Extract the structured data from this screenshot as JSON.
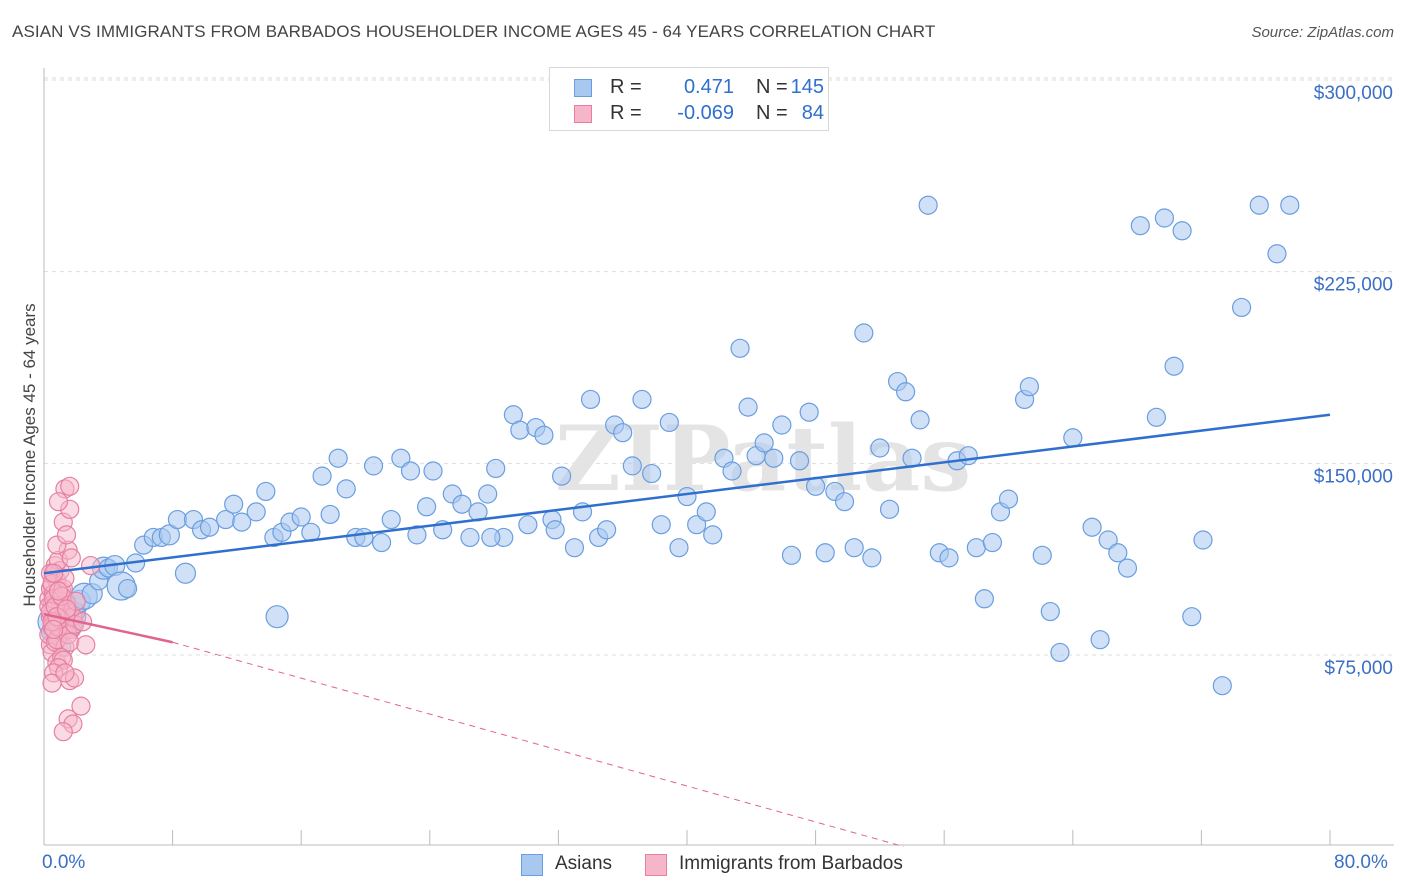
{
  "title": "ASIAN VS IMMIGRANTS FROM BARBADOS HOUSEHOLDER INCOME AGES 45 - 64 YEARS CORRELATION CHART",
  "source": "Source: ZipAtlas.com",
  "colors": {
    "blue_fill": "#a9c8f0",
    "blue_stroke": "#6a9ee0",
    "blue_line": "#2f6fce",
    "pink_fill": "#f5b6c9",
    "pink_stroke": "#e77fa0",
    "pink_line": "#e0648e",
    "axis_text": "#3a6fc4",
    "grid": "#dddddd"
  },
  "legend_top": {
    "rows": [
      {
        "r_label": "R =",
        "r_value": "0.471",
        "n_label": "N =",
        "n_value": "145",
        "series": "blue"
      },
      {
        "r_label": "R =",
        "r_value": "-0.069",
        "n_label": "N =",
        "n_value": "84",
        "series": "pink"
      }
    ]
  },
  "legend_bottom": [
    {
      "label": "Asians",
      "series": "blue"
    },
    {
      "label": "Immigrants from Barbados",
      "series": "pink"
    }
  ],
  "watermark": "ZIPatlas",
  "chart_data": {
    "type": "scatter",
    "ylabel": "Householder Income Ages 45 - 64 years",
    "xlabel": "",
    "xlim": [
      0,
      80
    ],
    "ylim": [
      0,
      310000
    ],
    "x_tick_labels": {
      "left": "0.0%",
      "right": "80.0%"
    },
    "y_ticks": [
      {
        "value": 75000,
        "label": "$75,000"
      },
      {
        "value": 150000,
        "label": "$150,000"
      },
      {
        "value": 225000,
        "label": "$225,000"
      },
      {
        "value": 300000,
        "label": "$300,000"
      }
    ],
    "grid": true,
    "series": [
      {
        "name": "Asians",
        "color": "#a9c8f0",
        "trend": {
          "x": [
            0,
            80
          ],
          "y": [
            107000,
            169000
          ],
          "style": "solid"
        },
        "points": [
          [
            0.5,
            88000,
            14
          ],
          [
            0.8,
            95000,
            10
          ],
          [
            1.0,
            84000,
            9
          ],
          [
            1.2,
            90000,
            12
          ],
          [
            1.4,
            96000,
            9
          ],
          [
            1.6,
            90000,
            16
          ],
          [
            2.0,
            92000,
            9
          ],
          [
            2.2,
            96000,
            11
          ],
          [
            2.5,
            98000,
            13
          ],
          [
            3.0,
            99000,
            10
          ],
          [
            1.8,
            86000,
            9
          ],
          [
            3.4,
            104000,
            9
          ],
          [
            3.7,
            109000,
            11
          ],
          [
            4.0,
            109000,
            9
          ],
          [
            4.4,
            110000,
            10
          ],
          [
            4.8,
            102000,
            14
          ],
          [
            5.2,
            101000,
            9
          ],
          [
            5.7,
            111000,
            9
          ],
          [
            6.2,
            118000,
            9
          ],
          [
            6.8,
            121000,
            9
          ],
          [
            7.3,
            121000,
            9
          ],
          [
            7.8,
            122000,
            10
          ],
          [
            8.3,
            128000,
            9
          ],
          [
            8.8,
            107000,
            10
          ],
          [
            9.3,
            128000,
            9
          ],
          [
            9.8,
            124000,
            9
          ],
          [
            10.3,
            125000,
            9
          ],
          [
            11.3,
            128000,
            9
          ],
          [
            11.8,
            134000,
            9
          ],
          [
            12.3,
            127000,
            9
          ],
          [
            13.2,
            131000,
            9
          ],
          [
            13.8,
            139000,
            9
          ],
          [
            14.3,
            121000,
            9
          ],
          [
            14.8,
            123000,
            9
          ],
          [
            15.3,
            127000,
            9
          ],
          [
            16.0,
            129000,
            9
          ],
          [
            16.6,
            123000,
            9
          ],
          [
            17.3,
            145000,
            9
          ],
          [
            17.8,
            130000,
            9
          ],
          [
            18.3,
            152000,
            9
          ],
          [
            18.8,
            140000,
            9
          ],
          [
            19.4,
            121000,
            9
          ],
          [
            19.9,
            121000,
            9
          ],
          [
            20.5,
            149000,
            9
          ],
          [
            21.0,
            119000,
            9
          ],
          [
            21.6,
            128000,
            9
          ],
          [
            22.2,
            152000,
            9
          ],
          [
            22.8,
            147000,
            9
          ],
          [
            23.2,
            122000,
            9
          ],
          [
            23.8,
            133000,
            9
          ],
          [
            24.2,
            147000,
            9
          ],
          [
            24.8,
            124000,
            9
          ],
          [
            25.4,
            138000,
            9
          ],
          [
            26.0,
            134000,
            9
          ],
          [
            26.5,
            121000,
            9
          ],
          [
            27.0,
            131000,
            9
          ],
          [
            27.6,
            138000,
            9
          ],
          [
            28.1,
            148000,
            9
          ],
          [
            28.6,
            121000,
            9
          ],
          [
            29.2,
            169000,
            9
          ],
          [
            29.6,
            163000,
            9
          ],
          [
            30.1,
            126000,
            9
          ],
          [
            30.6,
            164000,
            9
          ],
          [
            31.1,
            161000,
            9
          ],
          [
            31.6,
            128000,
            9
          ],
          [
            32.2,
            145000,
            9
          ],
          [
            33.0,
            117000,
            9
          ],
          [
            33.5,
            131000,
            9
          ],
          [
            34.0,
            175000,
            9
          ],
          [
            34.5,
            121000,
            9
          ],
          [
            35.0,
            124000,
            9
          ],
          [
            35.5,
            165000,
            9
          ],
          [
            36.0,
            162000,
            9
          ],
          [
            36.6,
            149000,
            9
          ],
          [
            37.2,
            175000,
            9
          ],
          [
            37.8,
            146000,
            9
          ],
          [
            38.4,
            126000,
            9
          ],
          [
            38.9,
            166000,
            9
          ],
          [
            39.5,
            117000,
            9
          ],
          [
            40.0,
            137000,
            9
          ],
          [
            40.6,
            126000,
            9
          ],
          [
            41.2,
            131000,
            9
          ],
          [
            41.6,
            122000,
            9
          ],
          [
            42.3,
            152000,
            9
          ],
          [
            42.8,
            147000,
            9
          ],
          [
            43.3,
            195000,
            9
          ],
          [
            43.8,
            172000,
            9
          ],
          [
            44.3,
            153000,
            9
          ],
          [
            44.8,
            158000,
            9
          ],
          [
            45.4,
            152000,
            9
          ],
          [
            45.9,
            165000,
            9
          ],
          [
            46.5,
            114000,
            9
          ],
          [
            47.0,
            151000,
            9
          ],
          [
            47.6,
            170000,
            9
          ],
          [
            48.0,
            141000,
            9
          ],
          [
            48.6,
            115000,
            9
          ],
          [
            49.2,
            139000,
            9
          ],
          [
            49.8,
            135000,
            9
          ],
          [
            50.4,
            117000,
            9
          ],
          [
            51.0,
            201000,
            9
          ],
          [
            51.5,
            113000,
            9
          ],
          [
            52.0,
            156000,
            9
          ],
          [
            52.6,
            132000,
            9
          ],
          [
            53.1,
            182000,
            9
          ],
          [
            53.6,
            178000,
            9
          ],
          [
            54.0,
            152000,
            9
          ],
          [
            54.5,
            167000,
            9
          ],
          [
            55.0,
            251000,
            9
          ],
          [
            55.7,
            115000,
            9
          ],
          [
            56.3,
            113000,
            9
          ],
          [
            56.8,
            151000,
            9
          ],
          [
            57.5,
            153000,
            9
          ],
          [
            58.0,
            117000,
            9
          ],
          [
            58.5,
            97000,
            9
          ],
          [
            59.0,
            119000,
            9
          ],
          [
            59.5,
            131000,
            9
          ],
          [
            60.0,
            136000,
            9
          ],
          [
            61.0,
            175000,
            9
          ],
          [
            61.3,
            180000,
            9
          ],
          [
            62.1,
            114000,
            9
          ],
          [
            62.6,
            92000,
            9
          ],
          [
            63.2,
            76000,
            9
          ],
          [
            64.0,
            160000,
            9
          ],
          [
            65.2,
            125000,
            9
          ],
          [
            65.7,
            81000,
            9
          ],
          [
            66.2,
            120000,
            9
          ],
          [
            66.8,
            115000,
            9
          ],
          [
            67.4,
            109000,
            9
          ],
          [
            68.2,
            243000,
            9
          ],
          [
            69.2,
            168000,
            9
          ],
          [
            69.7,
            246000,
            9
          ],
          [
            70.3,
            188000,
            9
          ],
          [
            70.8,
            241000,
            9
          ],
          [
            71.4,
            90000,
            9
          ],
          [
            72.1,
            120000,
            9
          ],
          [
            73.3,
            63000,
            9
          ],
          [
            74.5,
            211000,
            9
          ],
          [
            75.6,
            251000,
            9
          ],
          [
            76.7,
            232000,
            9
          ],
          [
            77.5,
            251000,
            9
          ],
          [
            27.8,
            121000,
            9
          ],
          [
            31.8,
            124000,
            9
          ],
          [
            14.5,
            90000,
            11
          ],
          [
            1.1,
            78000,
            9
          ],
          [
            0.4,
            84000,
            9
          ]
        ]
      },
      {
        "name": "Immigrants from Barbados",
        "color": "#f5b6c9",
        "trend": {
          "x": [
            0,
            8
          ],
          "y": [
            91000,
            80000
          ],
          "style": "solid",
          "extended": {
            "x": [
              8,
              53.5
            ],
            "y": [
              80000,
              0
            ],
            "style": "dashed"
          }
        },
        "points": [
          [
            0.3,
            97000
          ],
          [
            0.4,
            90000
          ],
          [
            0.5,
            102000
          ],
          [
            0.6,
            88000
          ],
          [
            0.4,
            79000
          ],
          [
            0.7,
            85000
          ],
          [
            0.5,
            95000
          ],
          [
            0.8,
            99000
          ],
          [
            0.6,
            106000
          ],
          [
            0.9,
            92000
          ],
          [
            0.3,
            83000
          ],
          [
            1.0,
            87000
          ],
          [
            0.7,
            110000
          ],
          [
            1.1,
            96000
          ],
          [
            0.5,
            76000
          ],
          [
            0.8,
            104000
          ],
          [
            1.2,
            90000
          ],
          [
            0.9,
            82000
          ],
          [
            0.4,
            101000
          ],
          [
            1.3,
            87000
          ],
          [
            0.6,
            93000
          ],
          [
            1.0,
            108000
          ],
          [
            0.7,
            80000
          ],
          [
            1.4,
            95000
          ],
          [
            0.5,
            86000
          ],
          [
            1.1,
            100000
          ],
          [
            0.8,
            72000
          ],
          [
            1.5,
            89000
          ],
          [
            0.3,
            94000
          ],
          [
            1.2,
            84000
          ],
          [
            0.9,
            112000
          ],
          [
            0.6,
            99000
          ],
          [
            1.6,
            91000
          ],
          [
            0.4,
            107000
          ],
          [
            1.3,
            78000
          ],
          [
            0.7,
            88000
          ],
          [
            1.0,
            96000
          ],
          [
            1.7,
            85000
          ],
          [
            0.5,
            103000
          ],
          [
            1.4,
            92000
          ],
          [
            0.8,
            81000
          ],
          [
            1.1,
            74000
          ],
          [
            0.6,
            97000
          ],
          [
            1.8,
            90000
          ],
          [
            0.9,
            86000
          ],
          [
            1.2,
            101000
          ],
          [
            0.4,
            92000
          ],
          [
            1.5,
            83000
          ],
          [
            1.0,
            89000
          ],
          [
            0.7,
            94000
          ],
          [
            1.3,
            105000
          ],
          [
            0.5,
            88000
          ],
          [
            1.9,
            87000
          ],
          [
            1.1,
            98000
          ],
          [
            0.8,
            90000
          ],
          [
            1.6,
            80000
          ],
          [
            0.6,
            85000
          ],
          [
            2.0,
            96000
          ],
          [
            1.4,
            93000
          ],
          [
            0.9,
            100000
          ],
          [
            1.5,
            116000
          ],
          [
            0.8,
            118000
          ],
          [
            1.2,
            127000
          ],
          [
            1.6,
            132000
          ],
          [
            1.3,
            140000
          ],
          [
            1.6,
            141000
          ],
          [
            0.9,
            135000
          ],
          [
            1.4,
            122000
          ],
          [
            1.7,
            113000
          ],
          [
            0.6,
            107000
          ],
          [
            1.2,
            73000
          ],
          [
            0.9,
            70000
          ],
          [
            1.6,
            65000
          ],
          [
            1.9,
            66000
          ],
          [
            0.6,
            68000
          ],
          [
            2.3,
            55000
          ],
          [
            1.5,
            50000
          ],
          [
            1.8,
            48000
          ],
          [
            1.2,
            45000
          ],
          [
            2.6,
            79000
          ],
          [
            2.4,
            88000
          ],
          [
            2.9,
            110000
          ],
          [
            0.5,
            64000
          ],
          [
            1.3,
            68000
          ]
        ]
      }
    ]
  }
}
